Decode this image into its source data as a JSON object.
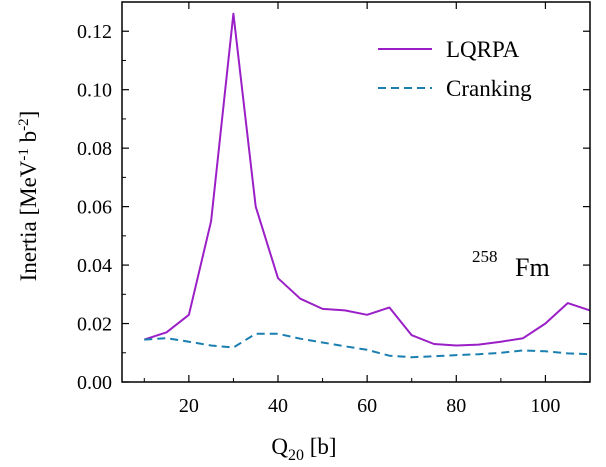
{
  "chart_data": {
    "type": "line",
    "xlabel": {
      "main": "Q",
      "sub": "20",
      "rest": " [b]"
    },
    "ylabel": {
      "main": "Inertia [MeV",
      "sup1": "-1",
      "mid": " b",
      "sup2": "-2",
      "end": "]"
    },
    "xlim": [
      5,
      110
    ],
    "ylim": [
      0,
      0.13
    ],
    "xticks": [
      20,
      40,
      60,
      80,
      100
    ],
    "xtick_labels": [
      "20",
      "40",
      "60",
      "80",
      "100"
    ],
    "yticks": [
      0,
      0.02,
      0.04,
      0.06,
      0.08,
      0.1,
      0.12
    ],
    "ytick_labels": [
      "0.00",
      "0.02",
      "0.04",
      "0.06",
      "0.08",
      "0.10",
      "0.12"
    ],
    "annotation": {
      "sup": "258",
      "text": "Fm"
    },
    "legend_position": "top-right",
    "series": [
      {
        "name": "LQRPA",
        "style": "solid",
        "color": "#9b1fc7",
        "x": [
          10,
          15,
          20,
          25,
          30,
          35,
          40,
          45,
          50,
          55,
          60,
          65,
          70,
          75,
          80,
          85,
          90,
          95,
          100,
          105,
          110
        ],
        "y": [
          0.0145,
          0.017,
          0.023,
          0.055,
          0.126,
          0.06,
          0.0355,
          0.0285,
          0.025,
          0.0245,
          0.023,
          0.0255,
          0.016,
          0.013,
          0.0125,
          0.0128,
          0.0138,
          0.015,
          0.02,
          0.027,
          0.0245
        ]
      },
      {
        "name": "Cranking",
        "style": "dashed",
        "color": "#1a7fb0",
        "x": [
          10,
          15,
          20,
          25,
          30,
          35,
          40,
          45,
          50,
          55,
          60,
          65,
          70,
          75,
          80,
          85,
          90,
          95,
          100,
          105,
          110
        ],
        "y": [
          0.0145,
          0.015,
          0.0138,
          0.0125,
          0.0118,
          0.0165,
          0.0165,
          0.0148,
          0.0135,
          0.0122,
          0.011,
          0.009,
          0.0085,
          0.0088,
          0.0092,
          0.0095,
          0.01,
          0.0108,
          0.0105,
          0.0098,
          0.0095
        ]
      }
    ]
  }
}
